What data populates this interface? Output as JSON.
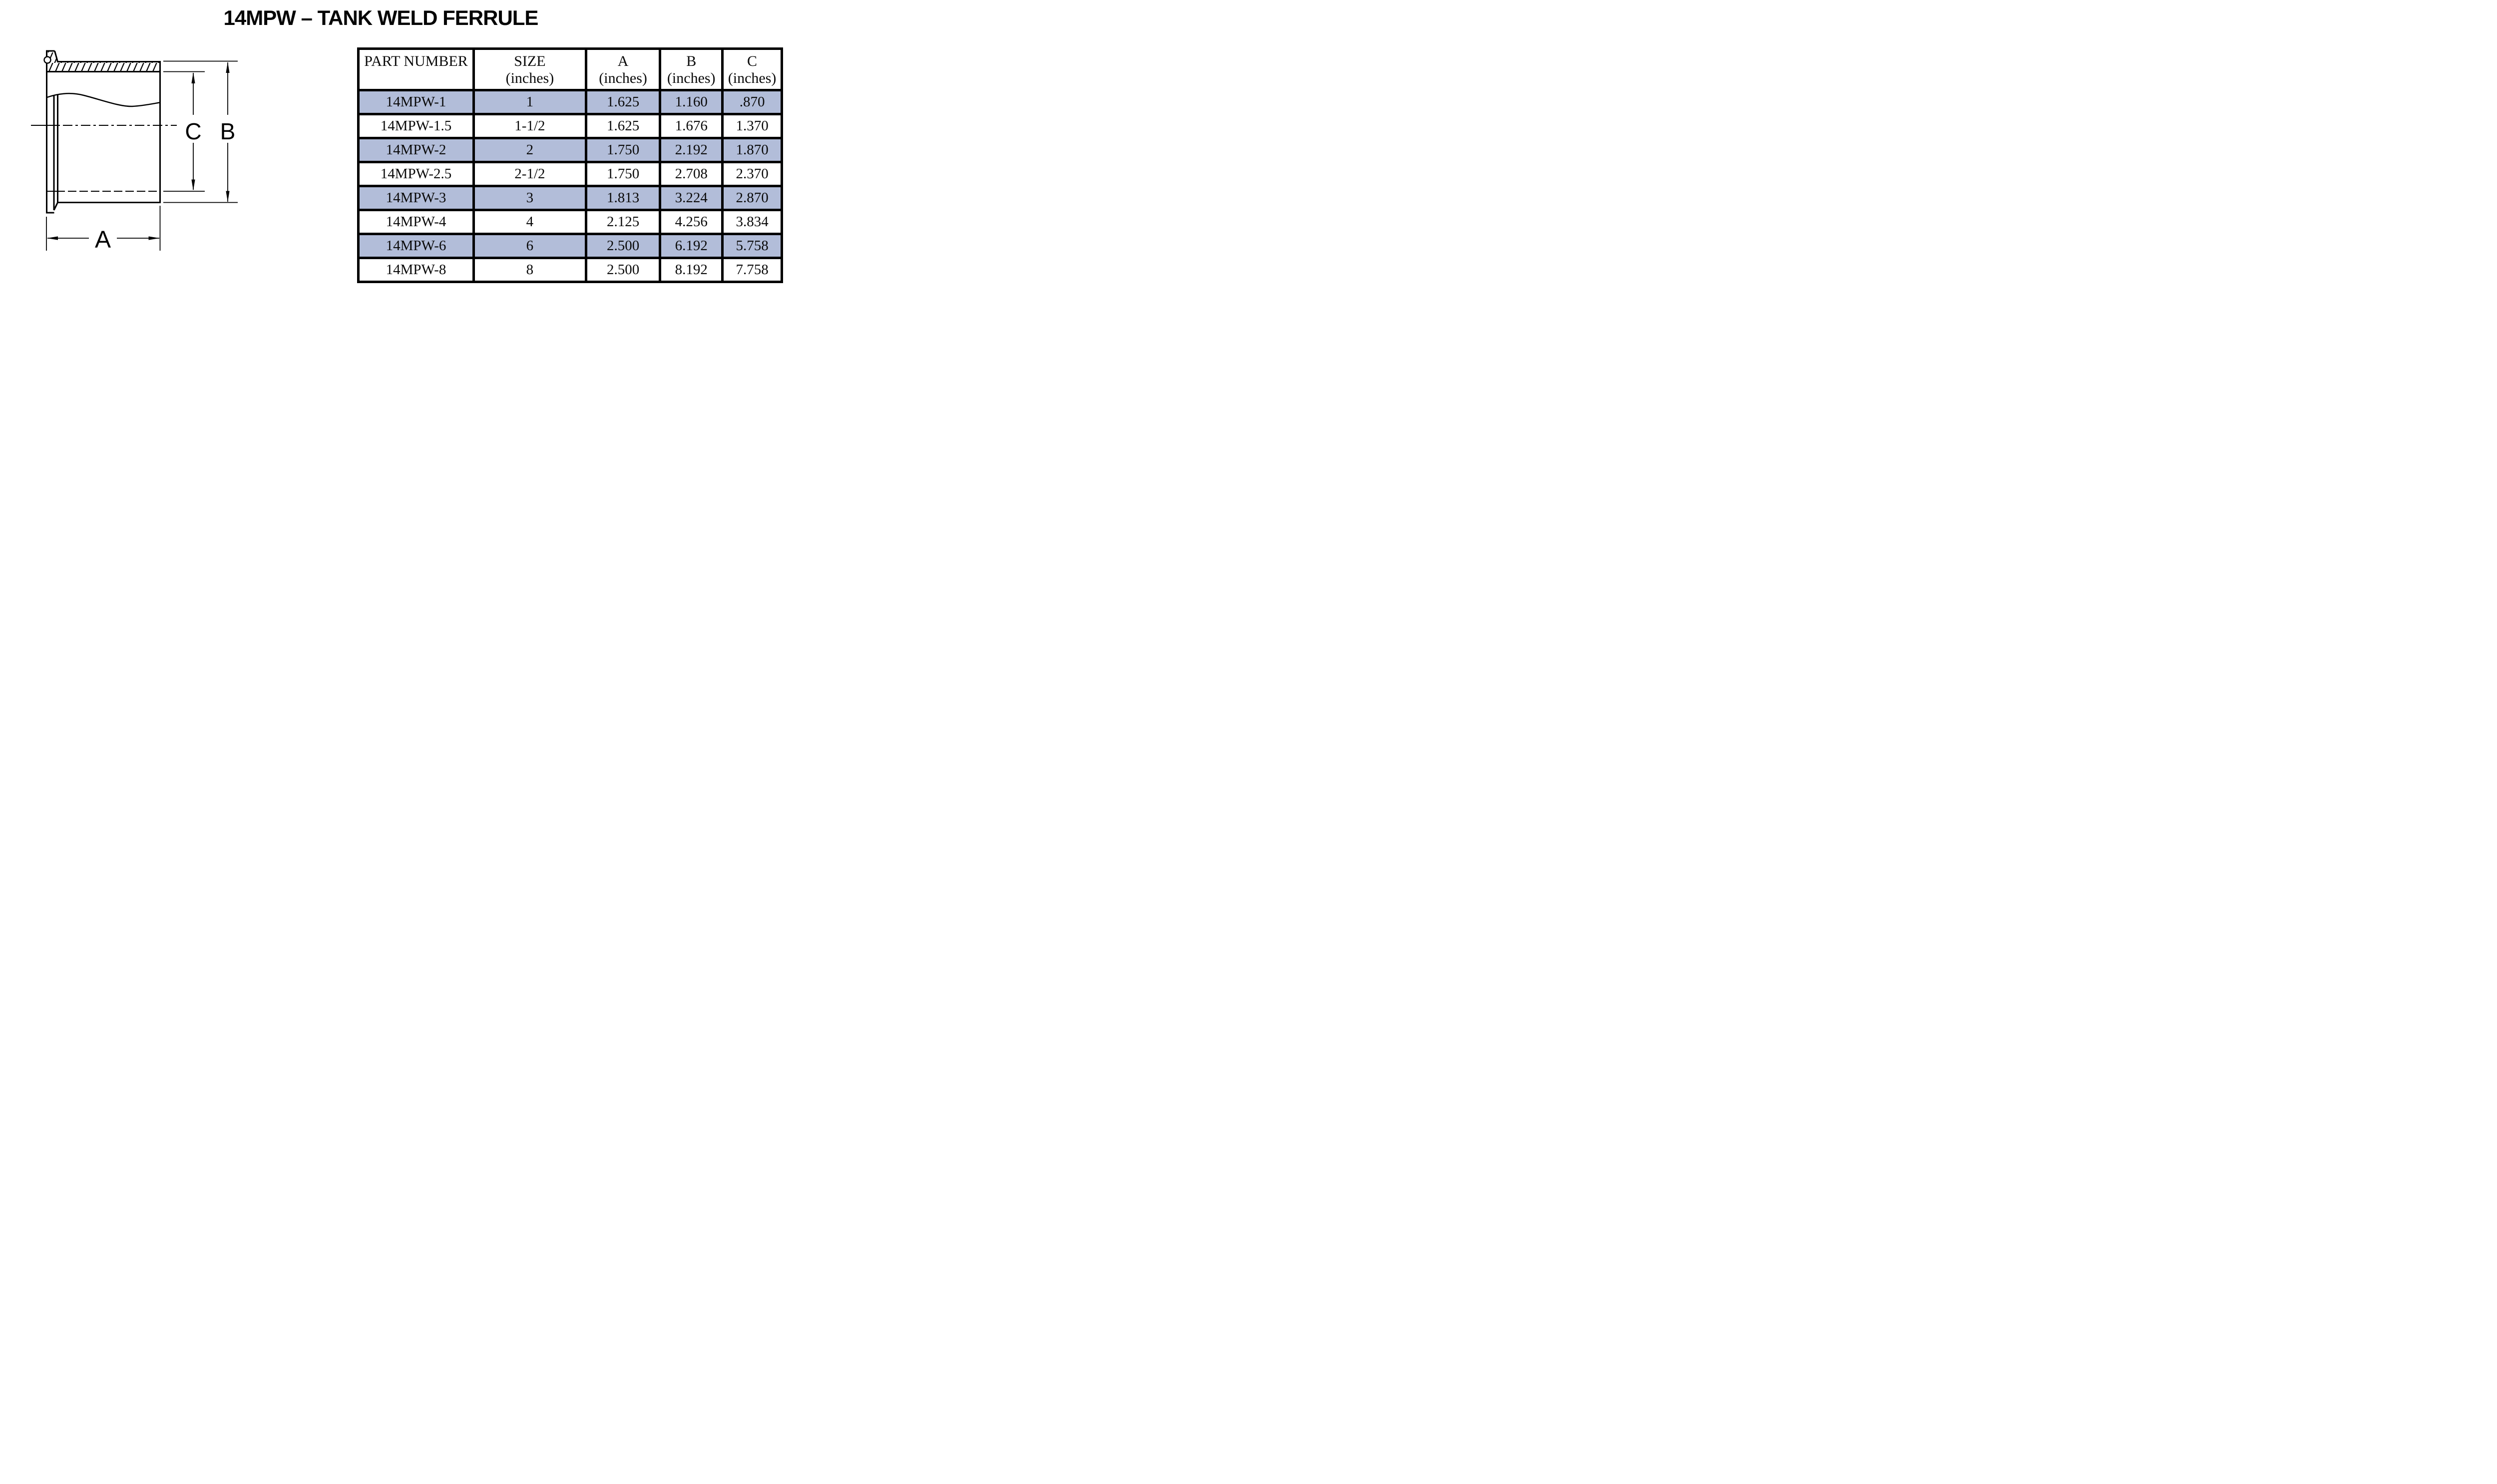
{
  "title": "14MPW – TANK WELD FERRULE",
  "diagram": {
    "description": "Cross-section drawing of tank weld ferrule with dimension callouts",
    "labels": {
      "a": "A",
      "b": "B",
      "c": "C"
    }
  },
  "table": {
    "highlight_color": "#b2bdd9",
    "columns": [
      {
        "label": "PART NUMBER",
        "sub": ""
      },
      {
        "label": "SIZE",
        "sub": "(inches)"
      },
      {
        "label": "A",
        "sub": "(inches)"
      },
      {
        "label": "B",
        "sub": "(inches)"
      },
      {
        "label": "C",
        "sub": "(inches)"
      }
    ],
    "rows": [
      {
        "part": "14MPW-1",
        "size": "1",
        "a": "1.625",
        "b": "1.160",
        "c": ".870",
        "highlighted": true
      },
      {
        "part": "14MPW-1.5",
        "size": "1-1/2",
        "a": "1.625",
        "b": "1.676",
        "c": "1.370",
        "highlighted": false
      },
      {
        "part": "14MPW-2",
        "size": "2",
        "a": "1.750",
        "b": "2.192",
        "c": "1.870",
        "highlighted": true
      },
      {
        "part": "14MPW-2.5",
        "size": "2-1/2",
        "a": "1.750",
        "b": "2.708",
        "c": "2.370",
        "highlighted": false
      },
      {
        "part": "14MPW-3",
        "size": "3",
        "a": "1.813",
        "b": "3.224",
        "c": "2.870",
        "highlighted": true
      },
      {
        "part": "14MPW-4",
        "size": "4",
        "a": "2.125",
        "b": "4.256",
        "c": "3.834",
        "highlighted": false
      },
      {
        "part": "14MPW-6",
        "size": "6",
        "a": "2.500",
        "b": "6.192",
        "c": "5.758",
        "highlighted": true
      },
      {
        "part": "14MPW-8",
        "size": "8",
        "a": "2.500",
        "b": "8.192",
        "c": "7.758",
        "highlighted": false
      }
    ]
  }
}
